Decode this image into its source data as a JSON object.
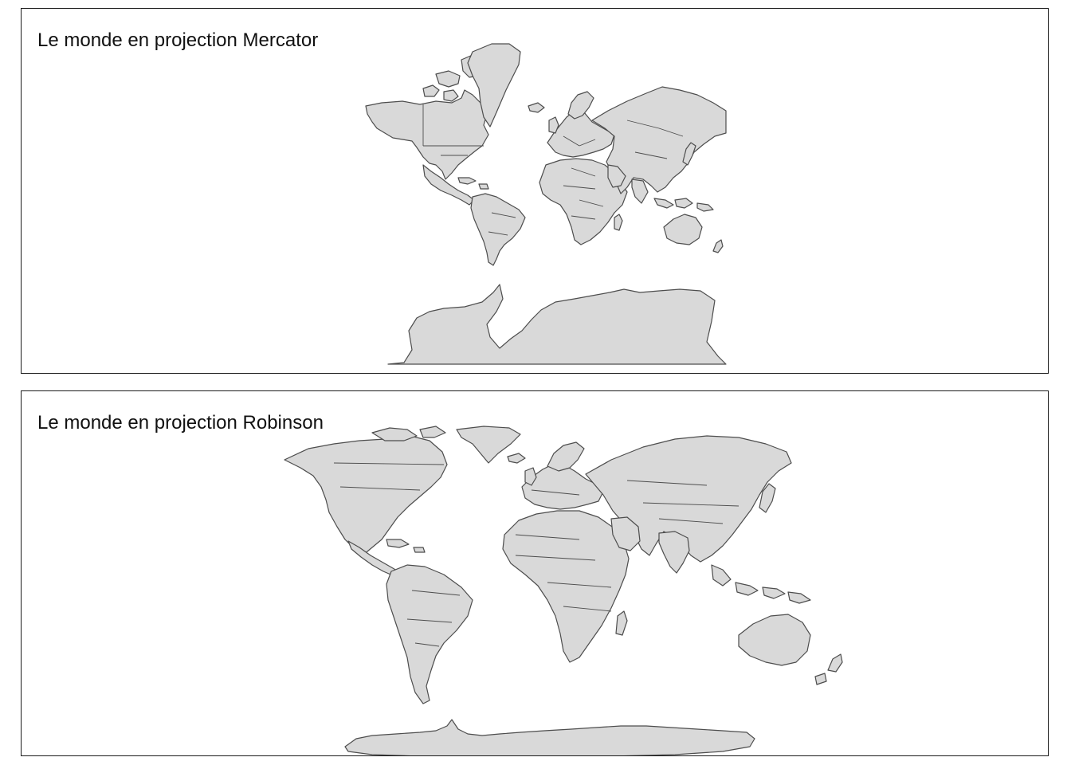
{
  "panels": [
    {
      "id": "mercator",
      "title": "Le monde en projection Mercator",
      "projection": "Mercator"
    },
    {
      "id": "robinson",
      "title": "Le monde en projection Robinson",
      "projection": "Robinson"
    }
  ],
  "style": {
    "land_fill": "#d9d9d9",
    "land_stroke": "#4d4d4d",
    "frame_color": "#1a1a1a",
    "background": "#ffffff"
  }
}
